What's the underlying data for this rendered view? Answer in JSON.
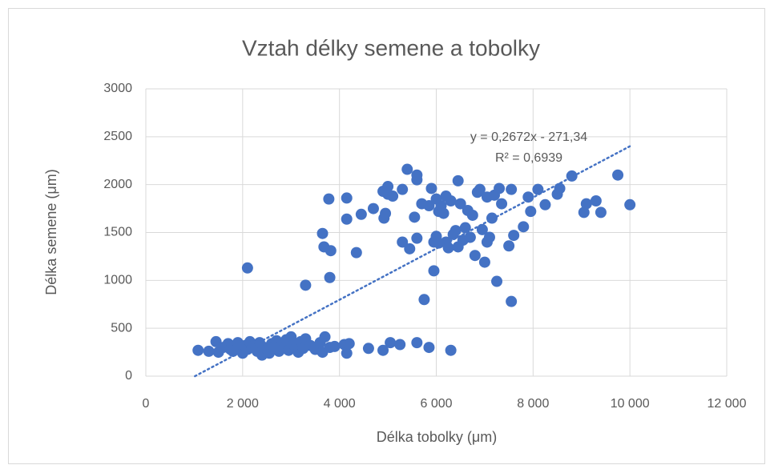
{
  "chart_data": {
    "type": "scatter",
    "title": "Vztah délky semene a tobolky",
    "x_label": "Délka tobolky (μm)",
    "y_label": "Délka semene (μm)",
    "xlim": [
      0,
      12000
    ],
    "ylim": [
      0,
      3000
    ],
    "xticks": [
      0,
      {
        "value": 2000,
        "label": "2 000"
      },
      {
        "value": 4000,
        "label": "4 000"
      },
      {
        "value": 6000,
        "label": "6 000"
      },
      {
        "value": 8000,
        "label": "8 000"
      },
      {
        "value": 10000,
        "label": "10 000"
      },
      {
        "value": 12000,
        "label": "12 000"
      }
    ],
    "yticks": [
      0,
      500,
      1000,
      1500,
      2000,
      2500,
      3000
    ],
    "grid": true,
    "series": [
      {
        "color": "#4472c4",
        "x": [
          1080,
          1300,
          1450,
          1500,
          1600,
          1700,
          1750,
          1800,
          1900,
          1950,
          2000,
          2050,
          2100,
          2150,
          2200,
          2250,
          2300,
          2350,
          2400,
          2450,
          2500,
          2550,
          2600,
          2650,
          2700,
          2750,
          2800,
          2850,
          2900,
          2950,
          3000,
          3050,
          3100,
          3150,
          3200,
          3250,
          3300,
          3400,
          3500,
          3600,
          3650,
          3700,
          3800,
          3900,
          4100,
          4150,
          4200,
          4600,
          4900,
          5050,
          5250,
          5600,
          5850,
          6300,
          2100,
          3300,
          3650,
          3680,
          3780,
          3800,
          3820,
          4150,
          4150,
          4350,
          4450,
          4700,
          4900,
          4920,
          4950,
          5000,
          5000,
          5100,
          5300,
          5400,
          5450,
          5550,
          5600,
          5600,
          5600,
          5700,
          5750,
          5850,
          5900,
          5950,
          5950,
          6000,
          6000,
          6050,
          6100,
          6150,
          6200,
          6200,
          6300,
          6350,
          6400,
          6450,
          6450,
          6500,
          6550,
          6600,
          6650,
          6700,
          6750,
          6800,
          6850,
          6900,
          6950,
          7000,
          7050,
          7050,
          7100,
          7150,
          7200,
          7250,
          7300,
          7350,
          7500,
          7550,
          7550,
          7600,
          7800,
          7900,
          7950,
          8100,
          8250,
          8500,
          8550,
          8800,
          9050,
          9100,
          9300,
          9400,
          9750,
          10000,
          6250,
          6050,
          6700,
          5300
        ],
        "values": [
          270,
          260,
          360,
          250,
          300,
          340,
          280,
          260,
          350,
          300,
          240,
          320,
          280,
          360,
          300,
          330,
          260,
          350,
          220,
          300,
          280,
          240,
          340,
          300,
          370,
          260,
          320,
          290,
          380,
          270,
          410,
          330,
          300,
          250,
          360,
          290,
          390,
          320,
          280,
          350,
          250,
          410,
          300,
          310,
          330,
          240,
          340,
          290,
          270,
          350,
          330,
          350,
          300,
          270,
          1130,
          950,
          1490,
          1350,
          1850,
          1030,
          1310,
          1860,
          1640,
          1290,
          1690,
          1750,
          1930,
          1650,
          1700,
          1980,
          1900,
          1880,
          1950,
          2160,
          1330,
          1660,
          1440,
          2100,
          2050,
          1800,
          800,
          1780,
          1960,
          1400,
          1100,
          1850,
          1460,
          1720,
          1780,
          1700,
          1880,
          1400,
          1830,
          1480,
          1520,
          2040,
          1350,
          1800,
          1420,
          1550,
          1730,
          1450,
          1680,
          1260,
          1920,
          1950,
          1530,
          1190,
          1870,
          1400,
          1450,
          1650,
          1890,
          990,
          1960,
          1800,
          1360,
          1950,
          780,
          1470,
          1560,
          1870,
          1720,
          1950,
          1790,
          1900,
          1960,
          2090,
          1710,
          1800,
          1830,
          1710,
          2100,
          1790,
          1340,
          1390,
          1450,
          1400
        ]
      }
    ],
    "trendline": {
      "slope": 0.2672,
      "intercept": -271.34,
      "x": [
        1015,
        10000
      ],
      "labels": [
        "y = 0,2672x - 271,34",
        "R² = 0,6939"
      ]
    }
  }
}
